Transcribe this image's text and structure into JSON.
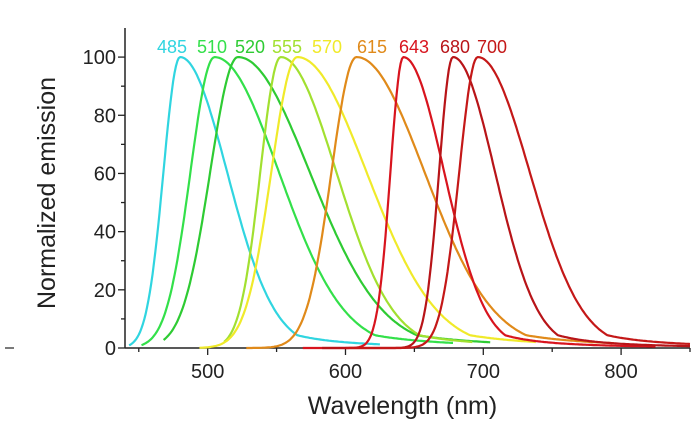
{
  "chart_data": {
    "type": "line",
    "title": "",
    "xlabel": "Wavelength (nm)",
    "ylabel": "Normalized emission",
    "xlim": [
      440,
      850
    ],
    "ylim": [
      0,
      110
    ],
    "x_ticks": [
      500,
      600,
      700,
      800
    ],
    "y_ticks": [
      0,
      20,
      40,
      60,
      80,
      100
    ],
    "grid": false,
    "legend": "peak labels along top",
    "series": [
      {
        "name": "485",
        "color": "#30d5e0",
        "peak": 480,
        "width_left": 18,
        "width_right": 38,
        "start": 443,
        "end": 625
      },
      {
        "name": "510",
        "color": "#33e04a",
        "peak": 505,
        "width_left": 26,
        "width_right": 52,
        "start": 452,
        "end": 678
      },
      {
        "name": "520",
        "color": "#2ecb33",
        "peak": 522,
        "width_left": 30,
        "width_right": 58,
        "start": 468,
        "end": 705
      },
      {
        "name": "555",
        "color": "#a2e030",
        "peak": 553,
        "width_left": 22,
        "width_right": 45,
        "start": 512,
        "end": 692
      },
      {
        "name": "570",
        "color": "#f0ea2a",
        "peak": 565,
        "width_left": 28,
        "width_right": 56,
        "start": 494,
        "end": 738
      },
      {
        "name": "615",
        "color": "#e08a1a",
        "peak": 608,
        "width_left": 27,
        "width_right": 55,
        "start": 528,
        "end": 795
      },
      {
        "name": "643",
        "color": "#d8141e",
        "peak": 642,
        "width_left": 14,
        "width_right": 33,
        "start": 569,
        "end": 825
      },
      {
        "name": "680",
        "color": "#b81418",
        "peak": 678,
        "width_left": 15,
        "width_right": 34,
        "start": 583,
        "end": 850
      },
      {
        "name": "700",
        "color": "#c41818",
        "peak": 696,
        "width_left": 20,
        "width_right": 42,
        "start": 600,
        "end": 850
      }
    ]
  }
}
